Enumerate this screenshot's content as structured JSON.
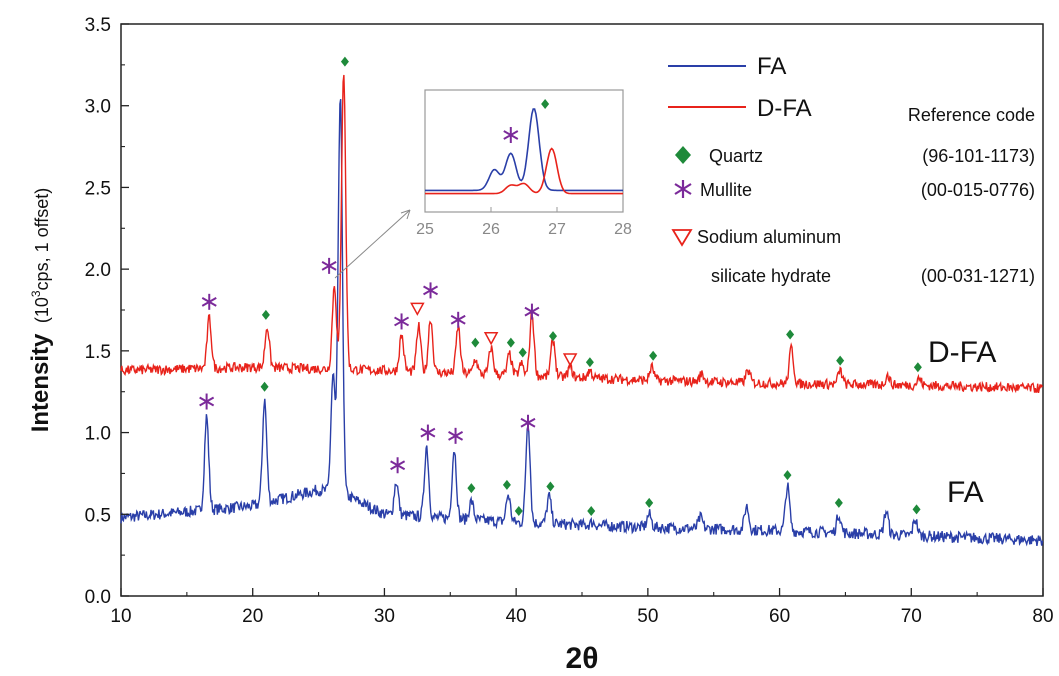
{
  "chart_data": {
    "type": "line",
    "xlabel": "2θ",
    "ylabel": {
      "bold": "Intensity",
      "pre": "(10",
      "sup": "3",
      "post": "cps, 1 offset)"
    },
    "xlim": [
      10,
      80
    ],
    "ylim": [
      0,
      3.5
    ],
    "xticks": [
      "10",
      "20",
      "30",
      "40",
      "50",
      "60",
      "70",
      "80"
    ],
    "yticks": [
      "0.0",
      "0.5",
      "1.0",
      "1.5",
      "2.0",
      "2.5",
      "3.0",
      "3.5"
    ],
    "colors": {
      "FA": "#2a3fa8",
      "D-FA": "#e8231b",
      "quartz": "#1e8a3a",
      "mullite": "#7b2a9a",
      "sodium": "#e8231b"
    },
    "series": [
      {
        "name": "FA",
        "baseline": [
          [
            10,
            0.48
          ],
          [
            20,
            0.55
          ],
          [
            25,
            0.65
          ],
          [
            27,
            0.62
          ],
          [
            30,
            0.5
          ],
          [
            40,
            0.45
          ],
          [
            50,
            0.42
          ],
          [
            60,
            0.4
          ],
          [
            70,
            0.37
          ],
          [
            80,
            0.34
          ]
        ]
      },
      {
        "name": "D-FA",
        "baseline": [
          [
            10,
            1.38
          ],
          [
            20,
            1.4
          ],
          [
            30,
            1.38
          ],
          [
            40,
            1.35
          ],
          [
            50,
            1.32
          ],
          [
            60,
            1.3
          ],
          [
            70,
            1.29
          ],
          [
            80,
            1.27
          ]
        ]
      }
    ],
    "peaks": {
      "FA": [
        [
          16.5,
          1.1
        ],
        [
          20.9,
          1.2
        ],
        [
          26.1,
          1.35
        ],
        [
          26.65,
          3.05
        ],
        [
          30.9,
          0.7
        ],
        [
          33.2,
          0.92
        ],
        [
          35.3,
          0.9
        ],
        [
          36.6,
          0.58
        ],
        [
          39.4,
          0.62
        ],
        [
          40.9,
          1.07
        ],
        [
          42.5,
          0.61
        ],
        [
          45.8,
          0.45
        ],
        [
          50.1,
          0.5
        ],
        [
          54.0,
          0.48
        ],
        [
          57.5,
          0.55
        ],
        [
          60.6,
          0.67
        ],
        [
          64.5,
          0.5
        ],
        [
          68.1,
          0.52
        ],
        [
          70.3,
          0.47
        ]
      ],
      "D-FA": [
        [
          16.7,
          1.7
        ],
        [
          21.1,
          1.65
        ],
        [
          26.2,
          1.9
        ],
        [
          26.9,
          3.22
        ],
        [
          31.3,
          1.6
        ],
        [
          32.6,
          1.65
        ],
        [
          33.5,
          1.7
        ],
        [
          35.6,
          1.65
        ],
        [
          36.9,
          1.45
        ],
        [
          38.1,
          1.52
        ],
        [
          39.5,
          1.48
        ],
        [
          40.4,
          1.42
        ],
        [
          41.2,
          1.73
        ],
        [
          42.8,
          1.57
        ],
        [
          44.1,
          1.4
        ],
        [
          45.6,
          1.38
        ],
        [
          50.3,
          1.4
        ],
        [
          54.1,
          1.36
        ],
        [
          57.6,
          1.38
        ],
        [
          60.9,
          1.52
        ],
        [
          64.6,
          1.38
        ],
        [
          68.2,
          1.35
        ],
        [
          70.6,
          1.33
        ]
      ]
    },
    "markers": {
      "quartz": [
        [
          21.0,
          1.72
        ],
        [
          27.0,
          3.27
        ],
        [
          36.9,
          1.55
        ],
        [
          39.6,
          1.55
        ],
        [
          40.5,
          1.49
        ],
        [
          42.8,
          1.59
        ],
        [
          45.6,
          1.43
        ],
        [
          50.4,
          1.47
        ],
        [
          60.8,
          1.6
        ],
        [
          64.6,
          1.44
        ],
        [
          70.5,
          1.4
        ],
        [
          20.9,
          1.28
        ],
        [
          36.6,
          0.66
        ],
        [
          39.3,
          0.68
        ],
        [
          40.2,
          0.52
        ],
        [
          42.6,
          0.67
        ],
        [
          45.7,
          0.52
        ],
        [
          50.1,
          0.57
        ],
        [
          60.6,
          0.74
        ],
        [
          64.5,
          0.57
        ],
        [
          70.4,
          0.53
        ]
      ],
      "mullite": [
        [
          16.7,
          1.8
        ],
        [
          25.8,
          2.02
        ],
        [
          31.3,
          1.68
        ],
        [
          33.5,
          1.87
        ],
        [
          35.6,
          1.69
        ],
        [
          41.2,
          1.74
        ],
        [
          16.5,
          1.19
        ],
        [
          31.0,
          0.8
        ],
        [
          33.3,
          1.0
        ],
        [
          35.4,
          0.98
        ],
        [
          40.9,
          1.06
        ]
      ],
      "sodium": [
        [
          32.5,
          1.76
        ],
        [
          38.1,
          1.58
        ],
        [
          44.1,
          1.45
        ]
      ]
    },
    "labels": {
      "D-FA": "D-FA",
      "FA": "FA"
    },
    "inset": {
      "xlim": [
        25,
        28
      ],
      "xticks": [
        "25",
        "26",
        "27",
        "28"
      ],
      "FA_peaks": [
        [
          26.05,
          0.25
        ],
        [
          26.3,
          0.45
        ],
        [
          26.65,
          1.0
        ]
      ],
      "DFA_peaks": [
        [
          26.3,
          0.1
        ],
        [
          26.5,
          0.12
        ],
        [
          26.92,
          0.55
        ]
      ]
    },
    "legend": {
      "FA": "FA",
      "D-FA": "D-FA",
      "reference_header": "Reference code",
      "quartz": "Quartz",
      "quartz_code": "(96-101-1173)",
      "mullite": "Mullite",
      "mullite_code": "(00-015-0776)",
      "sodium_line1": "Sodium aluminum",
      "sodium_line2": "silicate hydrate",
      "sodium_code": "(00-031-1271)"
    }
  }
}
